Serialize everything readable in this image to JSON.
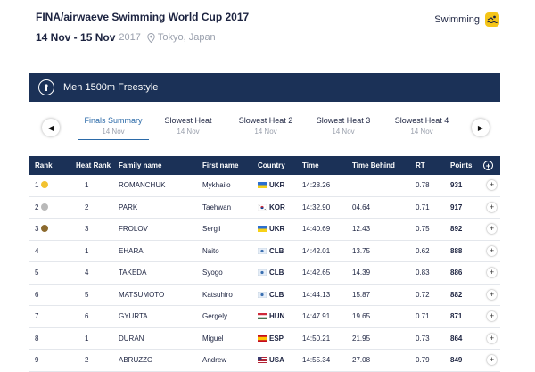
{
  "event": {
    "title": "FINA/airwaeve Swimming World Cup 2017",
    "dates": "14 Nov - 15 Nov",
    "year": "2017",
    "location": "Tokyo, Japan",
    "sport": "Swimming",
    "sport_icon": "swimming-icon",
    "race": "Men 1500m Freestyle"
  },
  "tabs": [
    {
      "label": "Finals Summary",
      "date": "14 Nov",
      "active": true
    },
    {
      "label": "Slowest Heat",
      "date": "14 Nov"
    },
    {
      "label": "Slowest Heat 2",
      "date": "14 Nov"
    },
    {
      "label": "Slowest Heat 3",
      "date": "14 Nov"
    },
    {
      "label": "Slowest Heat 4",
      "date": "14 Nov"
    }
  ],
  "table": {
    "headers": [
      "Rank",
      "Heat Rank",
      "Family name",
      "First name",
      "Country",
      "Time",
      "Time Behind",
      "RT",
      "Points"
    ],
    "rows": [
      {
        "rank": "1",
        "medal": "#f2c230",
        "heat_rank": "1",
        "family": "ROMANCHUK",
        "first": "Mykhailo",
        "country": "UKR",
        "time": "14:28.26",
        "behind": "",
        "rt": "0.78",
        "points": "931"
      },
      {
        "rank": "2",
        "medal": "#b9b9b9",
        "heat_rank": "2",
        "family": "PARK",
        "first": "Taehwan",
        "country": "KOR",
        "time": "14:32.90",
        "behind": "04.64",
        "rt": "0.71",
        "points": "917"
      },
      {
        "rank": "3",
        "medal": "#8c6a2e",
        "heat_rank": "3",
        "family": "FROLOV",
        "first": "Sergii",
        "country": "UKR",
        "time": "14:40.69",
        "behind": "12.43",
        "rt": "0.75",
        "points": "892"
      },
      {
        "rank": "4",
        "medal": "",
        "heat_rank": "1",
        "family": "EHARA",
        "first": "Naito",
        "country": "CLB",
        "time": "14:42.01",
        "behind": "13.75",
        "rt": "0.62",
        "points": "888"
      },
      {
        "rank": "5",
        "medal": "",
        "heat_rank": "4",
        "family": "TAKEDA",
        "first": "Syogo",
        "country": "CLB",
        "time": "14:42.65",
        "behind": "14.39",
        "rt": "0.83",
        "points": "886"
      },
      {
        "rank": "6",
        "medal": "",
        "heat_rank": "5",
        "family": "MATSUMOTO",
        "first": "Katsuhiro",
        "country": "CLB",
        "time": "14:44.13",
        "behind": "15.87",
        "rt": "0.72",
        "points": "882"
      },
      {
        "rank": "7",
        "medal": "",
        "heat_rank": "6",
        "family": "GYURTA",
        "first": "Gergely",
        "country": "HUN",
        "time": "14:47.91",
        "behind": "19.65",
        "rt": "0.71",
        "points": "871"
      },
      {
        "rank": "8",
        "medal": "",
        "heat_rank": "1",
        "family": "DURAN",
        "first": "Miguel",
        "country": "ESP",
        "time": "14:50.21",
        "behind": "21.95",
        "rt": "0.73",
        "points": "864"
      },
      {
        "rank": "9",
        "medal": "",
        "heat_rank": "2",
        "family": "ABRUZZO",
        "first": "Andrew",
        "country": "USA",
        "time": "14:55.34",
        "behind": "27.08",
        "rt": "0.79",
        "points": "849"
      }
    ]
  },
  "colors": {
    "navy": "#1b3157",
    "accent_blue": "#2b6aa8",
    "sport_yellow": "#f5c518"
  }
}
